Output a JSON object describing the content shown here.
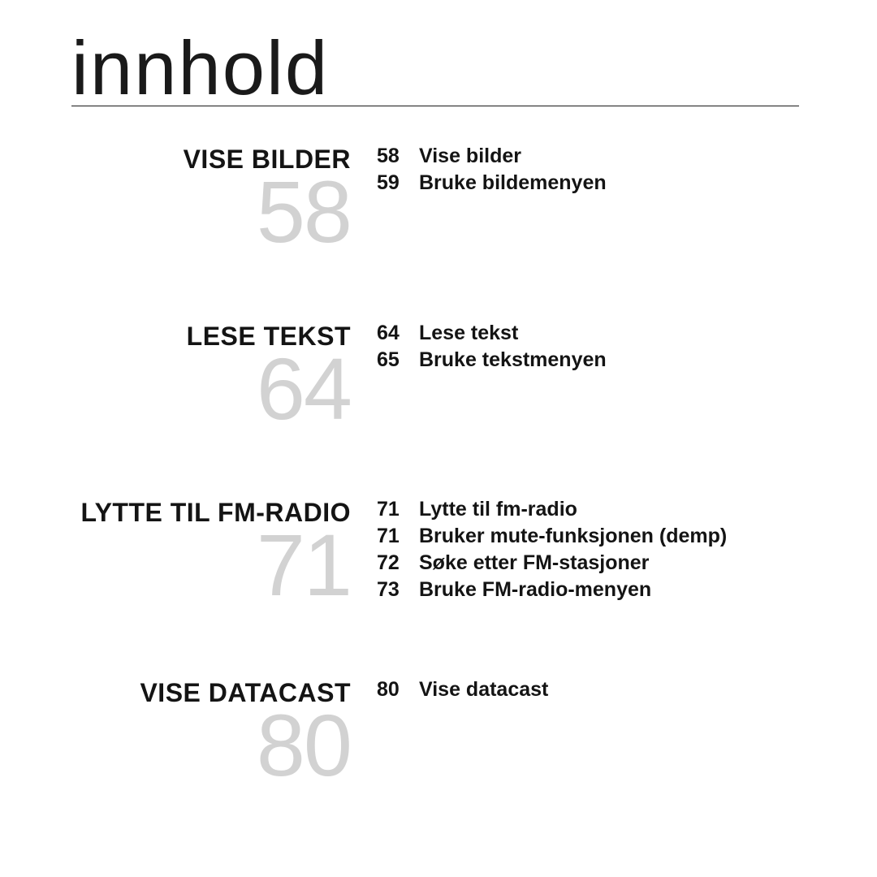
{
  "title": "innhold",
  "colors": {
    "text": "#141414",
    "bignum": "#d2d2d2",
    "rule": "#1a1a1a",
    "background": "#ffffff"
  },
  "typography": {
    "title_fontsize": 94,
    "title_weight": 100,
    "section_title_fontsize": 32,
    "section_title_weight": 700,
    "bignum_fontsize": 108,
    "bignum_weight": 100,
    "entry_fontsize": 25,
    "entry_weight": 700
  },
  "sections": [
    {
      "title": "VISE BILDER",
      "bignum": "58",
      "entries": [
        {
          "page": "58",
          "label": "Vise bilder"
        },
        {
          "page": "59",
          "label": "Bruke bildemenyen"
        }
      ]
    },
    {
      "title": "LESE TEKST",
      "bignum": "64",
      "entries": [
        {
          "page": "64",
          "label": "Lese tekst"
        },
        {
          "page": "65",
          "label": "Bruke tekstmenyen"
        }
      ]
    },
    {
      "title": "LYTTE TIL FM-RADIO",
      "bignum": "71",
      "entries": [
        {
          "page": "71",
          "label": "Lytte til fm-radio"
        },
        {
          "page": "71",
          "label": "Bruker mute-funksjonen (demp)"
        },
        {
          "page": "72",
          "label": "Søke etter FM-stasjoner"
        },
        {
          "page": "73",
          "label": "Bruke FM-radio-menyen"
        }
      ]
    },
    {
      "title": "VISE DATACAST",
      "bignum": "80",
      "entries": [
        {
          "page": "80",
          "label": "Vise datacast"
        }
      ]
    }
  ]
}
